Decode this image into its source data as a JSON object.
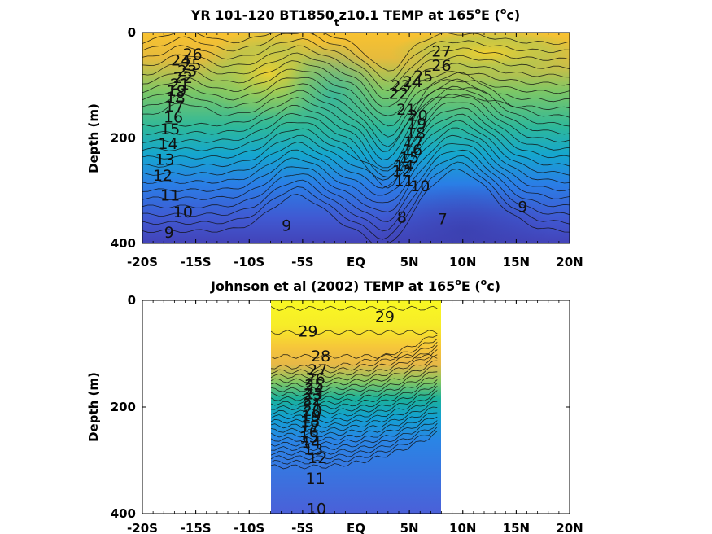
{
  "chart_data": [
    {
      "type": "heatmap",
      "title_main": "YR 101-120 BT1850",
      "title_sub": "t",
      "title_rest": "z10.1 TEMP at 165",
      "title_deg": "o",
      "title_tail": "E (",
      "title_unit_deg": "o",
      "title_unit": "c)",
      "ylabel": "Depth (m)",
      "x_ticks": [
        "-20S",
        "-15S",
        "-10S",
        "-5S",
        "EQ",
        "5N",
        "10N",
        "15N",
        "20N"
      ],
      "y_ticks": [
        "0",
        "200",
        "400"
      ],
      "xlim": [
        -20,
        20
      ],
      "ylim": [
        0,
        400
      ],
      "data_xrange": [
        -20,
        20
      ],
      "contour_labels": [
        {
          "text": "26",
          "lat": -15.3,
          "depth": 40
        },
        {
          "text": "24",
          "lat": -16.4,
          "depth": 52
        },
        {
          "text": "25",
          "lat": -15.4,
          "depth": 60
        },
        {
          "text": "23",
          "lat": -15.8,
          "depth": 72
        },
        {
          "text": "22",
          "lat": -16.2,
          "depth": 85
        },
        {
          "text": "21",
          "lat": -16.5,
          "depth": 97
        },
        {
          "text": "19",
          "lat": -16.8,
          "depth": 110
        },
        {
          "text": "18",
          "lat": -16.9,
          "depth": 123
        },
        {
          "text": "17",
          "lat": -17.0,
          "depth": 139
        },
        {
          "text": "16",
          "lat": -17.1,
          "depth": 160
        },
        {
          "text": "15",
          "lat": -17.4,
          "depth": 182
        },
        {
          "text": "14",
          "lat": -17.6,
          "depth": 210
        },
        {
          "text": "13",
          "lat": -17.9,
          "depth": 240
        },
        {
          "text": "12",
          "lat": -18.1,
          "depth": 270
        },
        {
          "text": "11",
          "lat": -17.4,
          "depth": 308
        },
        {
          "text": "10",
          "lat": -16.2,
          "depth": 340
        },
        {
          "text": "9",
          "lat": -17.5,
          "depth": 378
        },
        {
          "text": "9",
          "lat": -6.5,
          "depth": 365
        },
        {
          "text": "8",
          "lat": 4.3,
          "depth": 350
        },
        {
          "text": "7",
          "lat": 8.1,
          "depth": 353
        },
        {
          "text": "9",
          "lat": 15.6,
          "depth": 330
        },
        {
          "text": "27",
          "lat": 8.0,
          "depth": 35
        },
        {
          "text": "26",
          "lat": 8.0,
          "depth": 62
        },
        {
          "text": "25",
          "lat": 6.3,
          "depth": 82
        },
        {
          "text": "24",
          "lat": 5.3,
          "depth": 93
        },
        {
          "text": "23",
          "lat": 4.2,
          "depth": 100
        },
        {
          "text": "22",
          "lat": 4.0,
          "depth": 115
        },
        {
          "text": "21",
          "lat": 4.7,
          "depth": 145
        },
        {
          "text": "20",
          "lat": 5.8,
          "depth": 157
        },
        {
          "text": "19",
          "lat": 5.7,
          "depth": 172
        },
        {
          "text": "18",
          "lat": 5.6,
          "depth": 190
        },
        {
          "text": "17",
          "lat": 5.4,
          "depth": 207
        },
        {
          "text": "16",
          "lat": 5.3,
          "depth": 222
        },
        {
          "text": "15",
          "lat": 5.0,
          "depth": 236
        },
        {
          "text": "14",
          "lat": 4.5,
          "depth": 252
        },
        {
          "text": "12",
          "lat": 4.3,
          "depth": 262
        },
        {
          "text": "11",
          "lat": 4.5,
          "depth": 280
        },
        {
          "text": "10",
          "lat": 6.0,
          "depth": 290
        }
      ]
    },
    {
      "type": "heatmap",
      "title_main": "Johnson et al (2002) TEMP at 165",
      "title_deg": "o",
      "title_tail": "E (",
      "title_unit_deg": "o",
      "title_unit": "c)",
      "ylabel": "Depth (m)",
      "x_ticks": [
        "-20S",
        "-15S",
        "-10S",
        "-5S",
        "EQ",
        "5N",
        "10N",
        "15N",
        "20N"
      ],
      "y_ticks": [
        "0",
        "200",
        "400"
      ],
      "xlim": [
        -20,
        20
      ],
      "ylim": [
        0,
        400
      ],
      "data_xrange": [
        -8,
        8
      ],
      "contour_labels": [
        {
          "text": "29",
          "lat": 2.7,
          "depth": 30
        },
        {
          "text": "29",
          "lat": -4.5,
          "depth": 57
        },
        {
          "text": "28",
          "lat": -3.3,
          "depth": 104
        },
        {
          "text": "27",
          "lat": -3.6,
          "depth": 130
        },
        {
          "text": "26",
          "lat": -3.8,
          "depth": 146
        },
        {
          "text": "25",
          "lat": -3.9,
          "depth": 158
        },
        {
          "text": "24",
          "lat": -3.9,
          "depth": 166
        },
        {
          "text": "23",
          "lat": -4.0,
          "depth": 175
        },
        {
          "text": "22",
          "lat": -4.1,
          "depth": 185
        },
        {
          "text": "21",
          "lat": -4.1,
          "depth": 195
        },
        {
          "text": "20",
          "lat": -4.1,
          "depth": 206
        },
        {
          "text": "19",
          "lat": -4.2,
          "depth": 216
        },
        {
          "text": "18",
          "lat": -4.3,
          "depth": 226
        },
        {
          "text": "17",
          "lat": -4.3,
          "depth": 236
        },
        {
          "text": "16",
          "lat": -4.4,
          "depth": 246
        },
        {
          "text": "15",
          "lat": -4.4,
          "depth": 256
        },
        {
          "text": "14",
          "lat": -4.2,
          "depth": 266
        },
        {
          "text": "13",
          "lat": -4.0,
          "depth": 279
        },
        {
          "text": "12",
          "lat": -3.6,
          "depth": 295
        },
        {
          "text": "11",
          "lat": -3.8,
          "depth": 333
        },
        {
          "text": "10",
          "lat": -3.7,
          "depth": 390
        }
      ]
    }
  ]
}
